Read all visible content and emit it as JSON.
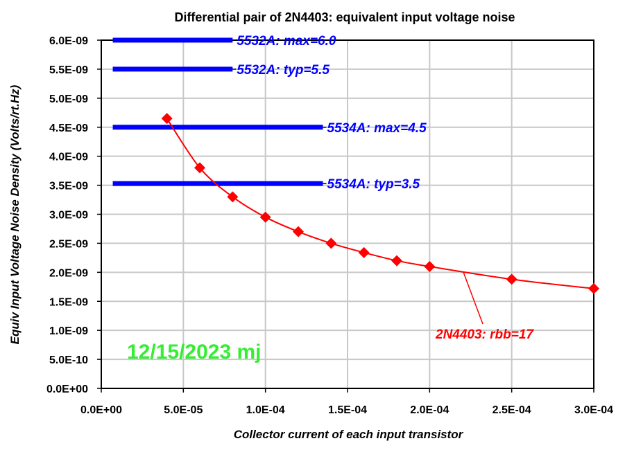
{
  "chart_data": {
    "type": "line",
    "title": "Differential pair of 2N4403: equivalent input voltage noise",
    "xlabel": "Collector current of each input transistor",
    "ylabel": "Equiv Input Voltage Noise Density  (Volts/rt.Hz)",
    "xlim": [
      0,
      0.0003
    ],
    "ylim": [
      0,
      6e-09
    ],
    "x_ticks": [
      "0.0E+00",
      "5.0E-05",
      "1.0E-04",
      "1.5E-04",
      "2.0E-04",
      "2.5E-04",
      "3.0E-04"
    ],
    "x_tick_values": [
      0,
      5e-05,
      0.0001,
      0.00015,
      0.0002,
      0.00025,
      0.0003
    ],
    "y_ticks": [
      "0.0E+00",
      "5.0E-10",
      "1.0E-09",
      "1.5E-09",
      "2.0E-09",
      "2.5E-09",
      "3.0E-09",
      "3.5E-09",
      "4.0E-09",
      "4.5E-09",
      "5.0E-09",
      "5.5E-09",
      "6.0E-09"
    ],
    "y_tick_values": [
      0,
      5e-10,
      1e-09,
      1.5e-09,
      2e-09,
      2.5e-09,
      3e-09,
      3.5e-09,
      4e-09,
      4.5e-09,
      5e-09,
      5.5e-09,
      6e-09
    ],
    "grid": true,
    "series": [
      {
        "label": "2N4403: rbb=17",
        "color": "#ff0000",
        "marker": "diamond",
        "x": [
          4e-05,
          6e-05,
          8e-05,
          0.0001,
          0.00012,
          0.00014,
          0.00016,
          0.00018,
          0.0002,
          0.00025,
          0.0003
        ],
        "y": [
          4.65e-09,
          3.8e-09,
          3.3e-09,
          2.95e-09,
          2.7e-09,
          2.5e-09,
          2.34e-09,
          2.2e-09,
          2.1e-09,
          1.88e-09,
          1.72e-09
        ]
      }
    ],
    "reference_lines": [
      {
        "label": "5532A: max=6.0",
        "y": 6e-09,
        "x_start": 7e-06,
        "x_end": 8e-05,
        "color": "#0000ff"
      },
      {
        "label": "5532A: typ=5.5",
        "y": 5.5e-09,
        "x_start": 7e-06,
        "x_end": 8e-05,
        "color": "#0000ff"
      },
      {
        "label": "5534A: max=4.5",
        "y": 4.5e-09,
        "x_start": 7e-06,
        "x_end": 0.000135,
        "color": "#0000ff"
      },
      {
        "label": "5534A: typ=3.5",
        "y": 3.53e-09,
        "x_start": 7e-06,
        "x_end": 0.000135,
        "color": "#0000ff"
      }
    ],
    "annotations": [
      {
        "text": "12/15/2023  mj",
        "color": "#33ee33"
      }
    ]
  }
}
